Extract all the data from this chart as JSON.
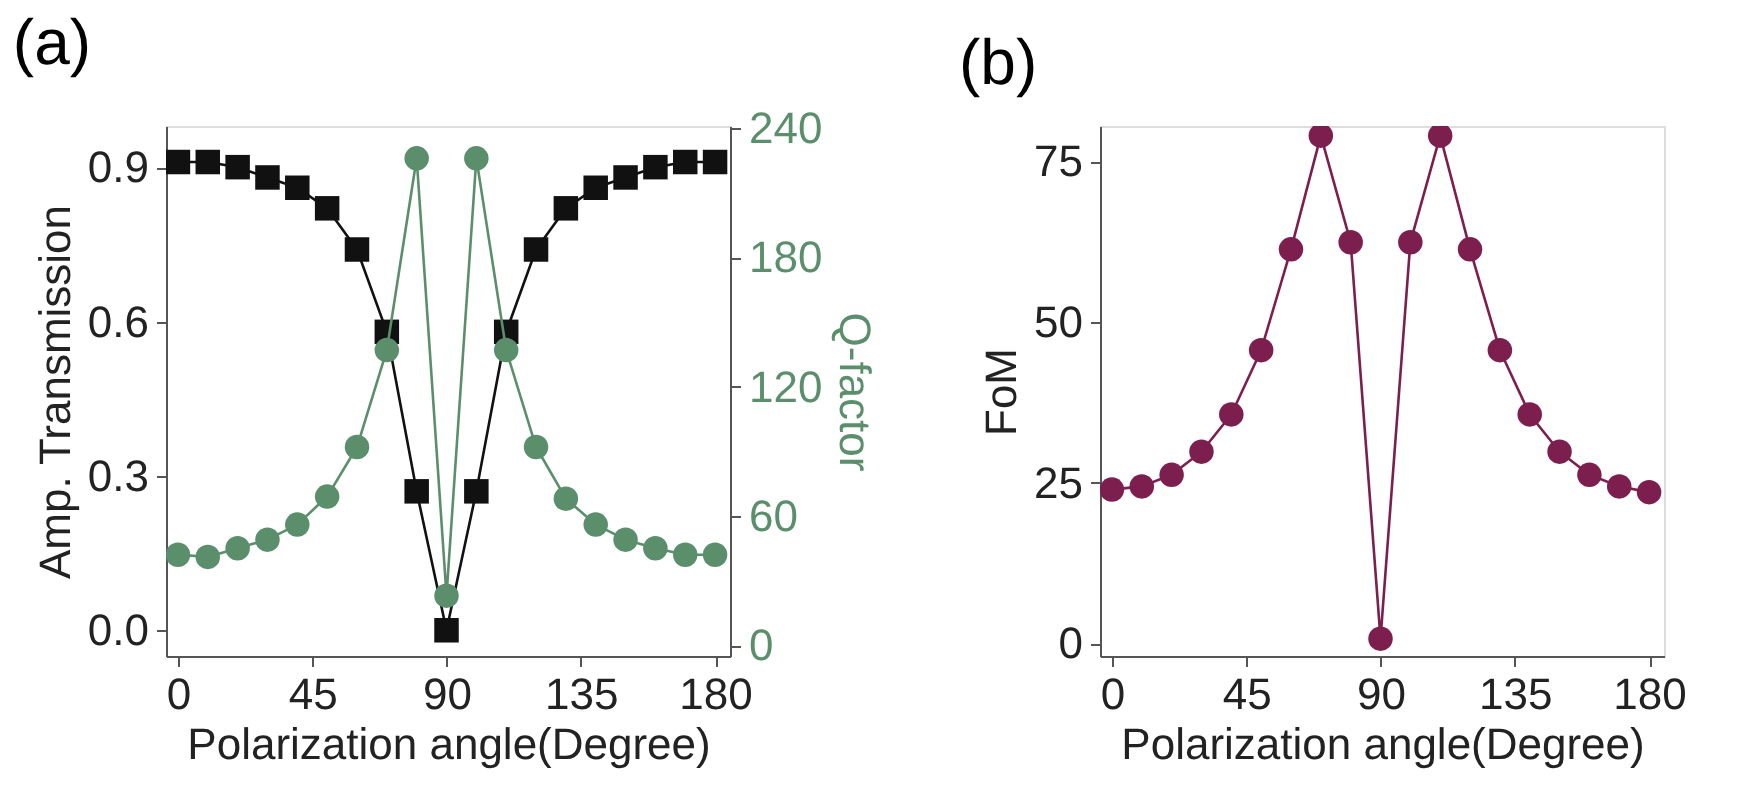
{
  "chart_data": [
    {
      "type": "line",
      "title": "(a)",
      "xlabel": "Polarization angle(Degree)",
      "ylabel": "Amp. Transmission",
      "y2label": "Q-factor",
      "x": [
        0,
        10,
        20,
        30,
        40,
        50,
        60,
        70,
        80,
        90,
        100,
        110,
        120,
        130,
        140,
        150,
        160,
        170,
        180
      ],
      "series": [
        {
          "color": "#111111",
          "marker": "square",
          "values": [
            0.91,
            0.91,
            0.9,
            0.88,
            0.86,
            0.82,
            0.74,
            0.58,
            0.27,
            0.0,
            0.27,
            0.58,
            0.74,
            0.82,
            0.86,
            0.88,
            0.9,
            0.91,
            0.91
          ]
        },
        {
          "color": "#5b8f6c",
          "marker": "circle",
          "axis": "y2",
          "values": [
            42,
            41,
            45,
            49,
            56,
            69,
            92,
            137,
            226,
            23,
            226,
            137,
            92,
            68,
            56,
            49,
            45,
            42,
            42
          ]
        }
      ],
      "xlim": [
        -4,
        185
      ],
      "xticks": [
        0,
        45,
        90,
        135,
        180
      ],
      "ylim": [
        -0.05,
        0.98
      ],
      "yticks": [
        {
          "value": 0,
          "label": "0.0"
        },
        0.3,
        0.6,
        0.9
      ],
      "y2lim": [
        -5,
        241
      ],
      "y2ticks": [
        0,
        60,
        120,
        180,
        240
      ],
      "grid": false
    },
    {
      "type": "line",
      "title": "(b)",
      "xlabel": "Polarization angle(Degree)",
      "ylabel": "FoM",
      "x": [
        0,
        10,
        20,
        30,
        40,
        50,
        60,
        70,
        80,
        90,
        100,
        110,
        120,
        130,
        140,
        150,
        160,
        170,
        180
      ],
      "series": [
        {
          "color": "#7d1f4e",
          "marker": "circle",
          "values": [
            23.9,
            24.4,
            26.2,
            29.8,
            35.6,
            45.6,
            61.3,
            79,
            62.4,
            0.7,
            62.4,
            79,
            61.3,
            45.6,
            35.6,
            29.8,
            26.2,
            24.4,
            23.5
          ]
        }
      ],
      "xlim": [
        -4,
        185
      ],
      "xticks": [
        0,
        45,
        90,
        135,
        180
      ],
      "ylim": [
        -2,
        80.5
      ],
      "yticks": [
        0,
        25,
        50,
        75
      ],
      "grid": false
    }
  ]
}
